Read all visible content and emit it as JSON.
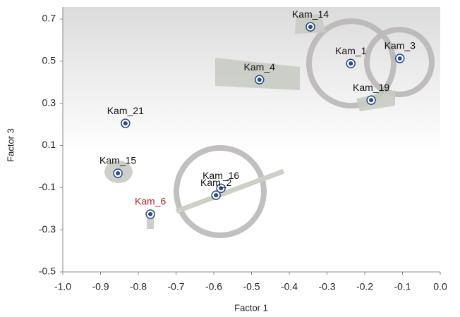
{
  "chart_data": {
    "type": "scatter",
    "x_label": "Factor 1",
    "y_label": "Factor 3",
    "point_labels": [
      "Kam_14",
      "Kam_1",
      "Kam_3",
      "Kam_4",
      "Kam_19",
      "Kam_21",
      "Kam_15",
      "Kam_16",
      "Kam_2",
      "Kam_6"
    ],
    "point_label_colors": [
      "#111111",
      "#111111",
      "#111111",
      "#111111",
      "#111111",
      "#111111",
      "#111111",
      "#111111",
      "#111111",
      "#b22222"
    ],
    "x": [
      -0.344,
      -0.237,
      -0.107,
      -0.479,
      -0.183,
      -0.834,
      -0.854,
      -0.581,
      -0.594,
      -0.768
    ],
    "values": [
      0.663,
      0.489,
      0.513,
      0.412,
      0.315,
      0.205,
      -0.032,
      -0.103,
      -0.136,
      -0.226
    ],
    "color": "#2a4a8a",
    "xlim": [
      -1,
      0
    ],
    "xticks": [
      {
        "value": -1,
        "label": "-1.0"
      },
      -0.9,
      -0.8,
      -0.7,
      -0.6,
      -0.5,
      -0.4,
      -0.3,
      -0.2,
      -0.1,
      {
        "value": 0,
        "label": "0.0"
      }
    ],
    "ylim": [
      -0.5,
      0.7
    ],
    "yticks": [
      -0.5,
      -0.3,
      -0.1,
      0.1,
      0.3,
      0.5,
      0.7
    ]
  }
}
